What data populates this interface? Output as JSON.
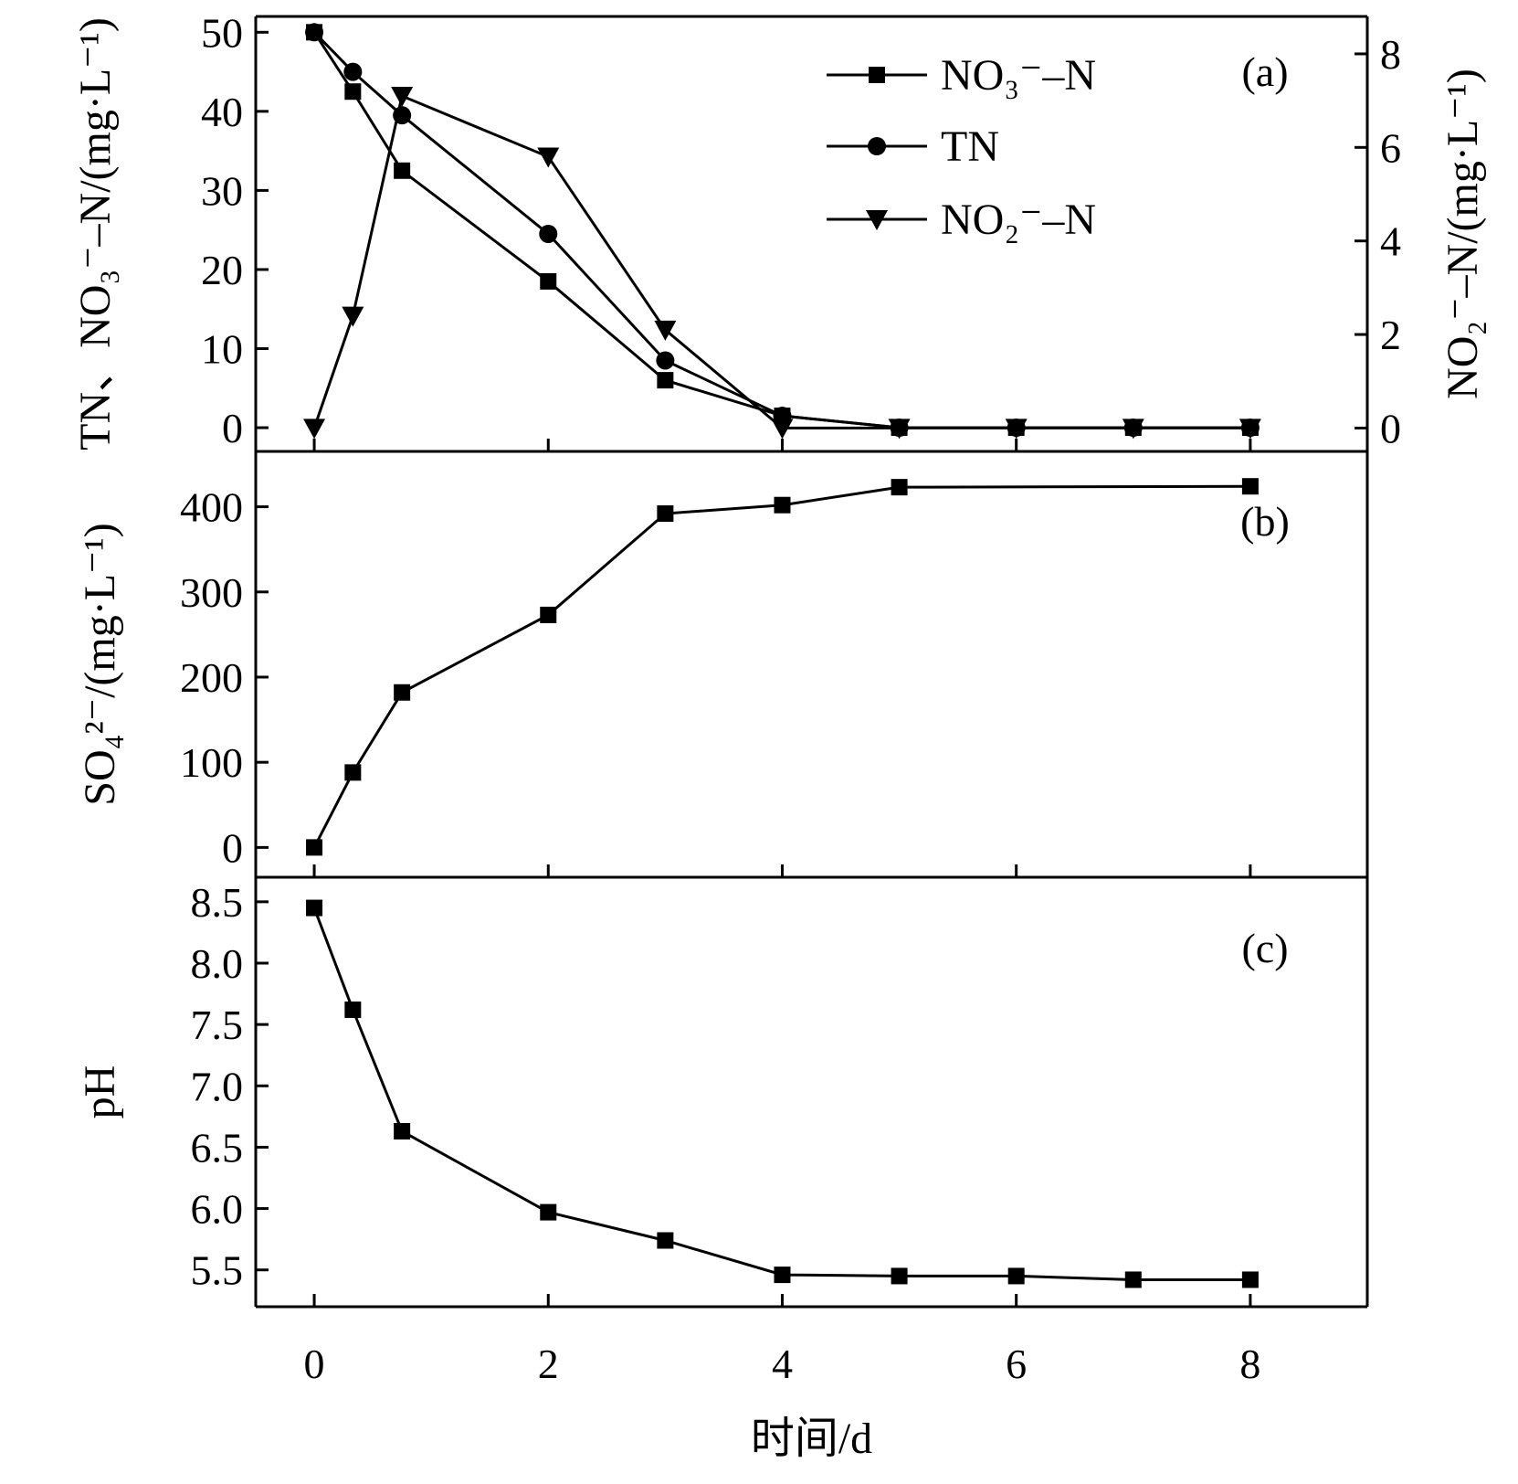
{
  "chart_data": [
    {
      "panel_label": "(a)",
      "type": "line",
      "ylabel_left": "TN、NO₃⁻–N/(mg·L⁻¹)",
      "ylabel_right": "NO₂⁻–N/(mg·L⁻¹)",
      "ylim": [
        -3,
        52
      ],
      "ylim_right": [
        -0.5,
        8.8
      ],
      "yticks": [
        0,
        10,
        20,
        30,
        40,
        50
      ],
      "yticks_right": [
        0,
        2,
        4,
        6,
        8
      ],
      "legend": {
        "position": "top-center"
      },
      "series": [
        {
          "name": "NO₃⁻–N",
          "axis": "left",
          "marker": "square",
          "x": [
            0,
            0.33,
            0.75,
            2,
            3,
            4,
            5,
            6,
            7,
            8
          ],
          "y": [
            50,
            42.5,
            32.5,
            18.5,
            6,
            1.5,
            0,
            0,
            0,
            0
          ]
        },
        {
          "name": "TN",
          "axis": "left",
          "marker": "circle",
          "x": [
            0,
            0.33,
            0.75,
            2,
            3,
            4,
            5,
            6,
            7,
            8
          ],
          "y": [
            50,
            45,
            39.5,
            24.5,
            8.5,
            1.5,
            0,
            0,
            0,
            0
          ]
        },
        {
          "name": "NO₂⁻–N",
          "axis": "right",
          "marker": "triangle-down",
          "x": [
            0,
            0.33,
            0.75,
            2,
            3,
            4,
            5,
            6,
            7,
            8
          ],
          "y": [
            0,
            2.4,
            7.1,
            5.8,
            2.1,
            0,
            0,
            0,
            0,
            0
          ]
        }
      ]
    },
    {
      "panel_label": "(b)",
      "type": "line",
      "ylabel": "SO₄²⁻/(mg·L⁻¹)",
      "ylim": [
        -35,
        465
      ],
      "yticks": [
        0,
        100,
        200,
        300,
        400
      ],
      "series": [
        {
          "marker": "square",
          "x": [
            0,
            0.33,
            0.75,
            2,
            3,
            4,
            5,
            8
          ],
          "y": [
            0,
            88,
            182,
            273,
            392,
            402,
            423,
            424
          ]
        }
      ]
    },
    {
      "panel_label": "(c)",
      "type": "line",
      "ylabel": "pH",
      "ylim": [
        5.2,
        8.7
      ],
      "yticks": [
        5.5,
        6.0,
        6.5,
        7.0,
        7.5,
        8.0,
        8.5
      ],
      "ytick_labels": [
        "5.5",
        "6.0",
        "6.5",
        "7.0",
        "7.5",
        "8.0",
        "8.5"
      ],
      "series": [
        {
          "marker": "square",
          "x": [
            0,
            0.33,
            0.75,
            2,
            3,
            4,
            5,
            6,
            7,
            8
          ],
          "y": [
            8.45,
            7.62,
            6.63,
            5.97,
            5.74,
            5.46,
            5.45,
            5.45,
            5.42,
            5.42
          ]
        }
      ]
    }
  ],
  "x_axis": {
    "xlabel": "时间/d",
    "xlim": [
      -0.5,
      9
    ],
    "xticks": [
      0,
      2,
      4,
      6,
      8
    ]
  }
}
